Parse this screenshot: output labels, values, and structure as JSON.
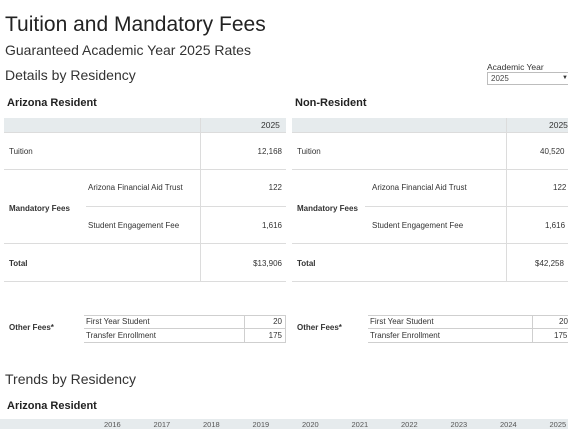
{
  "header": {
    "title": "Tuition and Mandatory Fees",
    "subtitle": "Guaranteed Academic Year 2025 Rates",
    "details_heading": "Details by Residency"
  },
  "filter": {
    "label": "Academic Year",
    "value": "2025"
  },
  "resident": {
    "heading": "Arizona Resident",
    "year": "2025",
    "tuition_label": "Tuition",
    "tuition_value": "12,168",
    "mandatory_label": "Mandatory Fees",
    "fee1_label": "Arizona Financial Aid Trust",
    "fee1_value": "122",
    "fee2_label": "Student Engagement Fee",
    "fee2_value": "1,616",
    "total_label": "Total",
    "total_value": "$13,906",
    "other_label": "Other Fees*",
    "other1_label": "First Year Student",
    "other1_value": "20",
    "other2_label": "Transfer Enrollment",
    "other2_value": "175"
  },
  "nonresident": {
    "heading": "Non-Resident",
    "year": "2025",
    "tuition_label": "Tuition",
    "tuition_value": "40,520",
    "mandatory_label": "Mandatory Fees",
    "fee1_label": "Arizona Financial Aid Trust",
    "fee1_value": "122",
    "fee2_label": "Student Engagement Fee",
    "fee2_value": "1,616",
    "total_label": "Total",
    "total_value": "$42,258",
    "other_label": "Other Fees*",
    "other1_label": "First Year Student",
    "other1_value": "20",
    "other2_label": "Transfer Enrollment",
    "other2_value": "175"
  },
  "trends": {
    "heading": "Trends by Residency",
    "resident_heading": "Arizona Resident",
    "years": [
      "2016",
      "2017",
      "2018",
      "2019",
      "2020",
      "2021",
      "2022",
      "2023",
      "2024",
      "2025"
    ]
  },
  "icons": {
    "dropdown": "caret-down-icon"
  }
}
